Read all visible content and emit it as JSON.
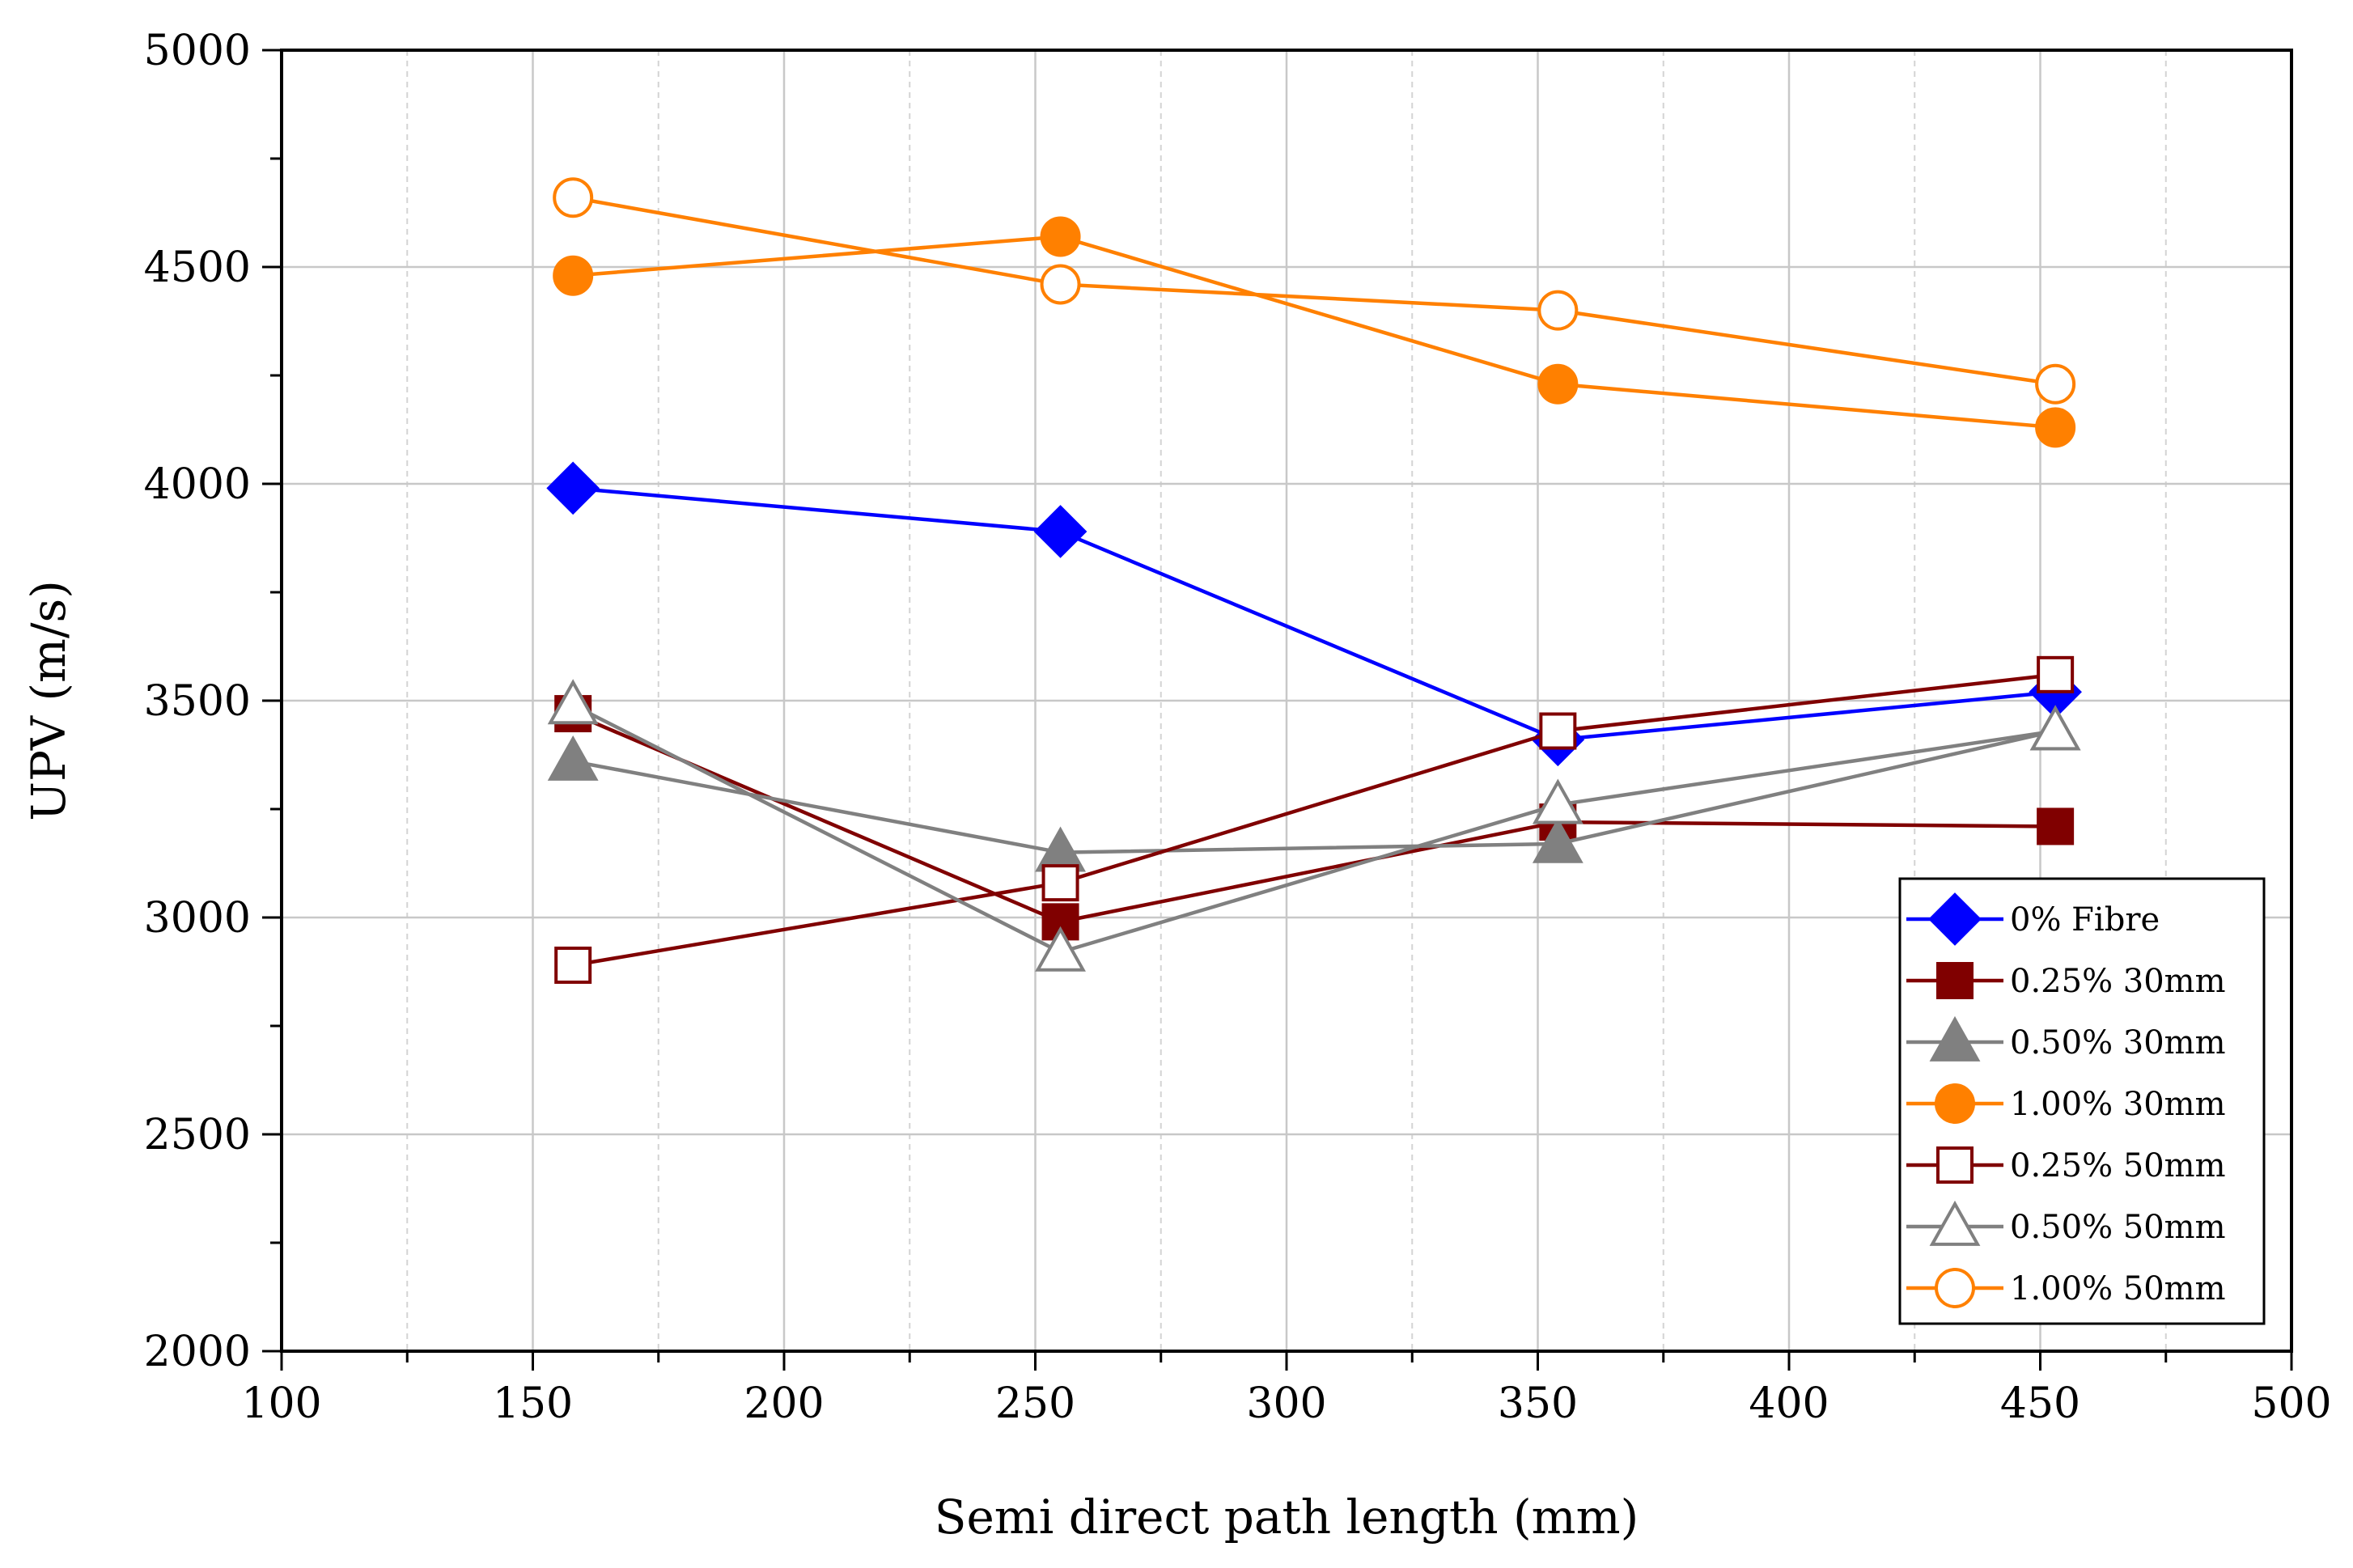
{
  "chart_data": {
    "type": "line",
    "title": "",
    "xlabel": "Semi direct path length (mm)",
    "ylabel": "UPV (m/s)",
    "xlim": [
      100,
      500
    ],
    "ylim": [
      2000,
      5000
    ],
    "xticks": [
      100,
      150,
      200,
      250,
      300,
      350,
      400,
      450,
      500
    ],
    "yticks": [
      2000,
      2500,
      3000,
      3500,
      4000,
      4500,
      5000
    ],
    "grid": true,
    "legend_position": "bottom-right",
    "series": [
      {
        "name": "0% Fibre",
        "color": "#0000ff",
        "marker": "diamond",
        "filled": true,
        "x": [
          158,
          255,
          354,
          453
        ],
        "y": [
          3990,
          3890,
          3410,
          3520
        ]
      },
      {
        "name": "0.25% 30mm",
        "color": "#800000",
        "marker": "square",
        "filled": true,
        "x": [
          158,
          255,
          354,
          453
        ],
        "y": [
          3470,
          2990,
          3220,
          3210
        ]
      },
      {
        "name": "0.50% 30mm",
        "color": "#808080",
        "marker": "triangle",
        "filled": true,
        "x": [
          158,
          255,
          354,
          453
        ],
        "y": [
          3360,
          3150,
          3170,
          3430
        ]
      },
      {
        "name": "1.00% 30mm",
        "color": "#ff8000",
        "marker": "circle",
        "filled": true,
        "x": [
          158,
          255,
          354,
          453
        ],
        "y": [
          4480,
          4570,
          4230,
          4130
        ]
      },
      {
        "name": "0.25% 50mm",
        "color": "#800000",
        "marker": "square",
        "filled": false,
        "x": [
          158,
          255,
          354,
          453
        ],
        "y": [
          2890,
          3080,
          3430,
          3560
        ]
      },
      {
        "name": "0.50% 50mm",
        "color": "#808080",
        "marker": "triangle",
        "filled": false,
        "x": [
          158,
          255,
          354,
          453
        ],
        "y": [
          3490,
          2920,
          3260,
          3430
        ]
      },
      {
        "name": "1.00% 50mm",
        "color": "#ff8000",
        "marker": "circle",
        "filled": false,
        "x": [
          158,
          255,
          354,
          453
        ],
        "y": [
          4660,
          4460,
          4400,
          4230
        ]
      }
    ]
  }
}
